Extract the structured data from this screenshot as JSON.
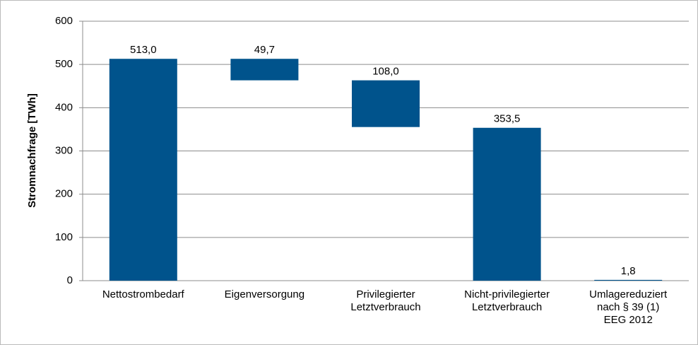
{
  "chart_data": {
    "type": "waterfall",
    "categories": [
      "Nettostrombedarf",
      "Eigenversorgung",
      "Privilegierter\nLetztverbrauch",
      "Nicht-privilegierter\nLetztverbrauch",
      "Umlagereduziert\nnach § 39 (1)\nEEG 2012"
    ],
    "values": [
      513.0,
      49.7,
      108.0,
      353.5,
      1.8
    ],
    "value_labels": [
      "513,0",
      "49,7",
      "108,0",
      "353,5",
      "1,8"
    ],
    "measures": [
      "total",
      "relative",
      "relative",
      "total",
      "total"
    ],
    "color": "#00538c",
    "ylabel": "Stromnachfrage  [TWh]",
    "ylim": [
      0,
      600
    ],
    "yticks": [
      0,
      100,
      200,
      300,
      400,
      500,
      600
    ],
    "grid": true
  }
}
